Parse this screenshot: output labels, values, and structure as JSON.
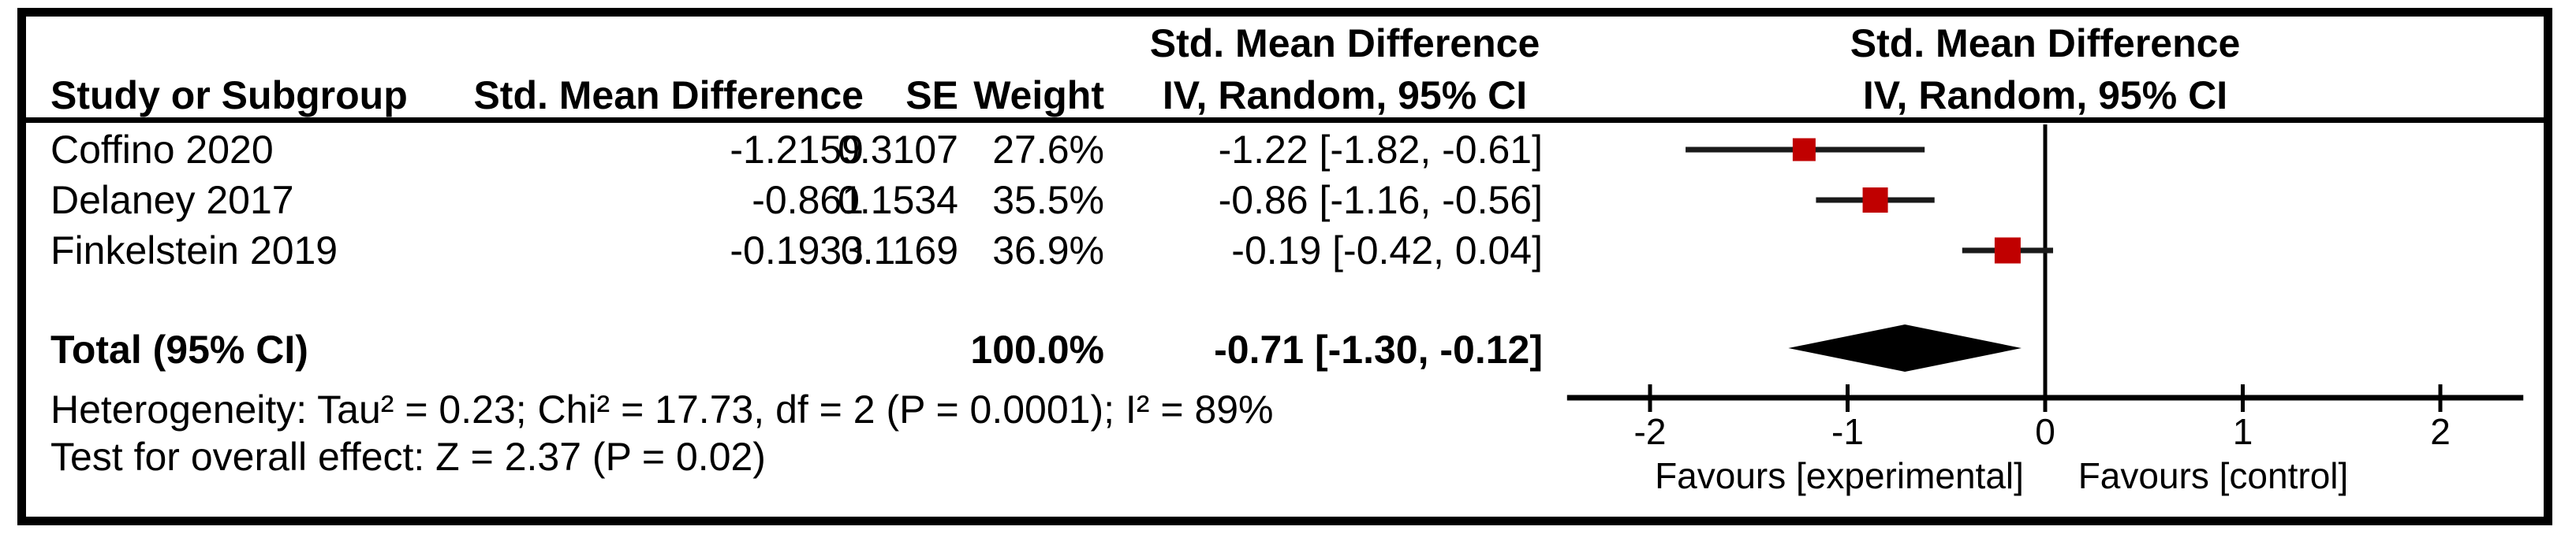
{
  "table": {
    "headers": {
      "study": "Study or Subgroup",
      "effect": "Std. Mean Difference",
      "se": "SE",
      "weight": "Weight",
      "method": "IV, Random, 95% CI"
    },
    "rows": [
      {
        "study": "Coffino 2020",
        "smd": "-1.2159",
        "se": "0.3107",
        "weight": "27.6%",
        "ci": "-1.22 [-1.82, -0.61]"
      },
      {
        "study": "Delaney 2017",
        "smd": "-0.861",
        "se": "0.1534",
        "weight": "35.5%",
        "ci": "-0.86 [-1.16, -0.56]"
      },
      {
        "study": "Finkelstein 2019",
        "smd": "-0.1933",
        "se": "0.1169",
        "weight": "36.9%",
        "ci": "-0.19 [-0.42, 0.04]"
      }
    ],
    "total": {
      "label": "Total (95% CI)",
      "weight": "100.0%",
      "ci": "-0.71 [-1.30, -0.12]"
    }
  },
  "footnotes": {
    "heterogeneity": "Heterogeneity: Tau² = 0.23; Chi² = 17.73, df = 2 (P = 0.0001); I² = 89%",
    "overall_effect": "Test for overall effect: Z = 2.37 (P = 0.02)"
  },
  "chart_data": {
    "type": "scatter",
    "subtype": "forest-plot",
    "title": "Std. Mean Difference, IV, Random, 95% CI",
    "studies": [
      {
        "name": "Coffino 2020",
        "smd": -1.2159,
        "se": 0.3107,
        "weight_pct": 27.6,
        "est": -1.22,
        "ci_low": -1.82,
        "ci_high": -0.61
      },
      {
        "name": "Delaney 2017",
        "smd": -0.861,
        "se": 0.1534,
        "weight_pct": 35.5,
        "est": -0.86,
        "ci_low": -1.16,
        "ci_high": -0.56
      },
      {
        "name": "Finkelstein 2019",
        "smd": -0.1933,
        "se": 0.1169,
        "weight_pct": 36.9,
        "est": -0.19,
        "ci_low": -0.42,
        "ci_high": 0.04
      }
    ],
    "total": {
      "name": "Total (95% CI)",
      "weight_pct": 100.0,
      "est": -0.71,
      "ci_low": -1.3,
      "ci_high": -0.12
    },
    "x_ticks": [
      -2,
      -1,
      0,
      1,
      2
    ],
    "xlim": [
      -2.42,
      2.42
    ],
    "x_axis_annotations": {
      "left": "Favours [experimental]",
      "right": "Favours [control]"
    },
    "grid": false,
    "marker_color": "#c00000",
    "ci_color": "#1a1a1a",
    "diamond_color": "#000000",
    "axis_color": "#000000"
  }
}
